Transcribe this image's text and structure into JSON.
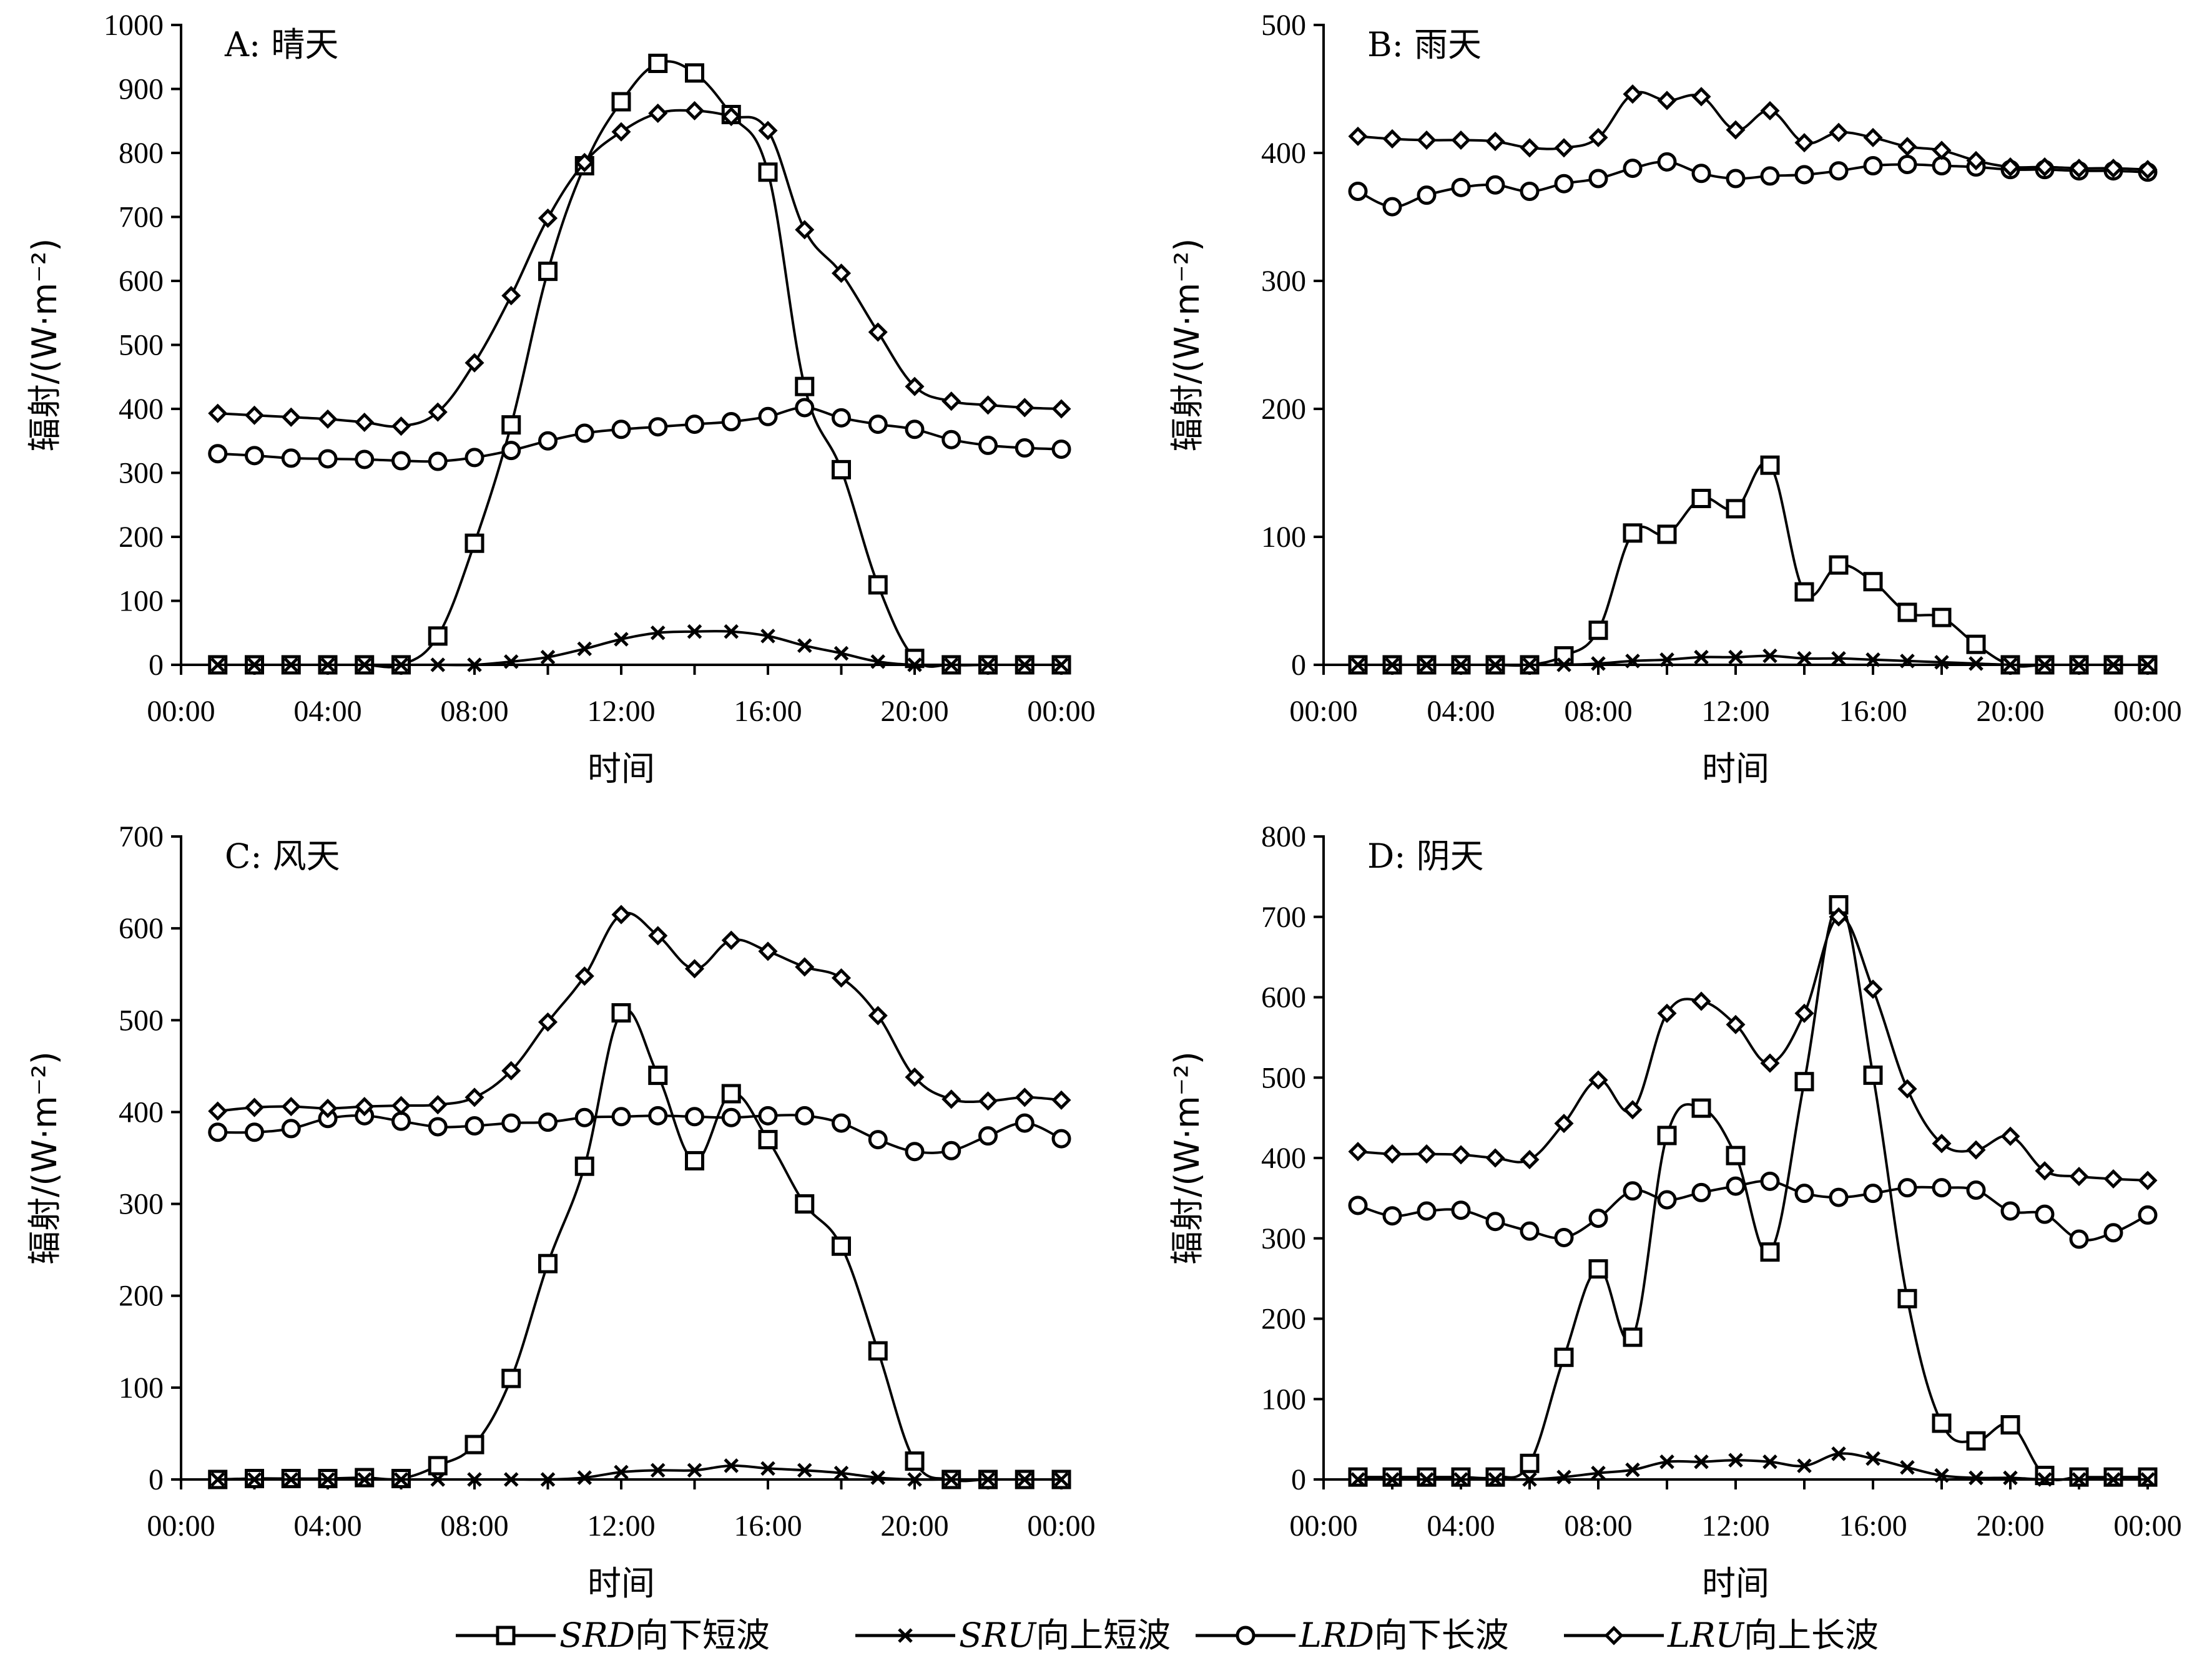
{
  "legend": [
    {
      "code": "SRD",
      "label": "向下短波",
      "marker": "square"
    },
    {
      "code": "SRU",
      "label": "向上短波",
      "marker": "x"
    },
    {
      "code": "LRD",
      "label": "向下长波",
      "marker": "circle"
    },
    {
      "code": "LRU",
      "label": "向上长波",
      "marker": "diamond"
    }
  ],
  "chart_data": [
    {
      "type": "line",
      "title": "A: 晴天",
      "xlabel": "时间",
      "ylabel": "辐射/(W·m⁻²)",
      "ylim": [
        0,
        1000
      ],
      "yticks": [
        0,
        100,
        200,
        300,
        400,
        500,
        600,
        700,
        800,
        900,
        1000
      ],
      "xlim": [
        0,
        24
      ],
      "xticks": [
        "00:00",
        "04:00",
        "08:00",
        "12:00",
        "16:00",
        "20:00",
        "00:00"
      ],
      "x": [
        1,
        2,
        3,
        4,
        5,
        6,
        7,
        8,
        9,
        10,
        11,
        12,
        13,
        14,
        15,
        16,
        17,
        18,
        19,
        20,
        21,
        22,
        23,
        24
      ],
      "series": [
        {
          "name": "SRD",
          "values": [
            0,
            0,
            0,
            0,
            0,
            0,
            45,
            190,
            375,
            615,
            780,
            880,
            940,
            925,
            860,
            770,
            435,
            305,
            125,
            10,
            0,
            0,
            0,
            0
          ]
        },
        {
          "name": "SRU",
          "values": [
            0,
            0,
            0,
            0,
            0,
            0,
            0,
            0,
            5,
            12,
            25,
            40,
            50,
            52,
            52,
            45,
            30,
            18,
            5,
            0,
            0,
            0,
            0,
            0
          ]
        },
        {
          "name": "LRD",
          "values": [
            330,
            327,
            323,
            322,
            321,
            319,
            318,
            324,
            335,
            350,
            362,
            368,
            372,
            376,
            380,
            388,
            402,
            386,
            376,
            368,
            352,
            343,
            339,
            337
          ]
        },
        {
          "name": "LRU",
          "values": [
            393,
            390,
            387,
            384,
            379,
            373,
            395,
            472,
            577,
            698,
            785,
            833,
            862,
            866,
            857,
            835,
            680,
            612,
            520,
            435,
            412,
            406,
            402,
            400
          ]
        }
      ]
    },
    {
      "type": "line",
      "title": "B: 雨天",
      "xlabel": "时间",
      "ylabel": "辐射/(W·m⁻²)",
      "ylim": [
        0,
        500
      ],
      "yticks": [
        0,
        100,
        200,
        300,
        400,
        500
      ],
      "xlim": [
        0,
        24
      ],
      "xticks": [
        "00:00",
        "04:00",
        "08:00",
        "12:00",
        "16:00",
        "20:00",
        "00:00"
      ],
      "x": [
        1,
        2,
        3,
        4,
        5,
        6,
        7,
        8,
        9,
        10,
        11,
        12,
        13,
        14,
        15,
        16,
        17,
        18,
        19,
        20,
        21,
        22,
        23,
        24
      ],
      "series": [
        {
          "name": "SRD",
          "values": [
            0,
            0,
            0,
            0,
            0,
            0,
            7,
            27,
            103,
            102,
            130,
            122,
            156,
            57,
            78,
            65,
            41,
            37,
            16,
            0,
            0,
            0,
            0,
            0
          ]
        },
        {
          "name": "SRU",
          "values": [
            0,
            0,
            0,
            0,
            0,
            0,
            0,
            1,
            3,
            4,
            6,
            6,
            7,
            5,
            5,
            4,
            3,
            2,
            1,
            0,
            0,
            0,
            0,
            0
          ]
        },
        {
          "name": "LRD",
          "values": [
            370,
            358,
            367,
            373,
            375,
            370,
            376,
            380,
            388,
            393,
            384,
            380,
            382,
            383,
            386,
            390,
            391,
            390,
            389,
            387,
            387,
            386,
            386,
            385
          ]
        },
        {
          "name": "LRU",
          "values": [
            413,
            411,
            410,
            410,
            409,
            404,
            404,
            412,
            446,
            441,
            444,
            418,
            433,
            408,
            416,
            412,
            405,
            402,
            394,
            389,
            389,
            388,
            388,
            387
          ]
        }
      ]
    },
    {
      "type": "line",
      "title": "C: 风天",
      "xlabel": "时间",
      "ylabel": "辐射/(W·m⁻²)",
      "ylim": [
        0,
        700
      ],
      "yticks": [
        0,
        100,
        200,
        300,
        400,
        500,
        600,
        700
      ],
      "xlim": [
        0,
        24
      ],
      "xticks": [
        "00:00",
        "04:00",
        "08:00",
        "12:00",
        "16:00",
        "20:00",
        "00:00"
      ],
      "x": [
        1,
        2,
        3,
        4,
        5,
        6,
        7,
        8,
        9,
        10,
        11,
        12,
        13,
        14,
        15,
        16,
        17,
        18,
        19,
        20,
        21,
        22,
        23,
        24
      ],
      "series": [
        {
          "name": "SRD",
          "values": [
            0,
            1,
            1,
            1,
            2,
            1,
            15,
            38,
            110,
            235,
            341,
            508,
            440,
            347,
            420,
            370,
            300,
            254,
            140,
            20,
            0,
            0,
            0,
            0
          ]
        },
        {
          "name": "SRU",
          "values": [
            0,
            0,
            0,
            0,
            0,
            0,
            0,
            0,
            0,
            0,
            2,
            8,
            10,
            10,
            15,
            12,
            10,
            7,
            2,
            0,
            0,
            0,
            0,
            0
          ]
        },
        {
          "name": "LRD",
          "values": [
            378,
            378,
            382,
            393,
            396,
            390,
            384,
            385,
            388,
            389,
            394,
            395,
            396,
            395,
            394,
            396,
            396,
            388,
            370,
            357,
            358,
            374,
            388,
            371
          ]
        },
        {
          "name": "LRU",
          "values": [
            401,
            405,
            406,
            404,
            406,
            407,
            408,
            416,
            445,
            498,
            548,
            615,
            592,
            556,
            587,
            575,
            558,
            546,
            505,
            438,
            414,
            412,
            416,
            413
          ]
        }
      ]
    },
    {
      "type": "line",
      "title": "D: 阴天",
      "xlabel": "时间",
      "ylabel": "辐射/(W·m⁻²)",
      "ylim": [
        0,
        800
      ],
      "yticks": [
        0,
        100,
        200,
        300,
        400,
        500,
        600,
        700,
        800
      ],
      "xlim": [
        0,
        24
      ],
      "xticks": [
        "00:00",
        "04:00",
        "08:00",
        "12:00",
        "16:00",
        "20:00",
        "00:00"
      ],
      "x": [
        1,
        2,
        3,
        4,
        5,
        6,
        7,
        8,
        9,
        10,
        11,
        12,
        13,
        14,
        15,
        16,
        17,
        18,
        19,
        20,
        21,
        22,
        23,
        24
      ],
      "series": [
        {
          "name": "SRD",
          "values": [
            3,
            3,
            3,
            3,
            3,
            20,
            152,
            262,
            177,
            428,
            462,
            403,
            283,
            495,
            715,
            503,
            225,
            70,
            48,
            68,
            5,
            3,
            3,
            3
          ]
        },
        {
          "name": "SRU",
          "values": [
            0,
            0,
            0,
            0,
            0,
            0,
            3,
            8,
            12,
            22,
            22,
            24,
            22,
            17,
            32,
            26,
            15,
            5,
            2,
            2,
            0,
            0,
            0,
            0
          ]
        },
        {
          "name": "LRD",
          "values": [
            341,
            328,
            334,
            335,
            321,
            309,
            301,
            325,
            359,
            348,
            357,
            365,
            371,
            356,
            351,
            356,
            363,
            363,
            360,
            334,
            330,
            299,
            307,
            329
          ]
        },
        {
          "name": "LRU",
          "values": [
            408,
            405,
            405,
            404,
            400,
            398,
            443,
            497,
            460,
            580,
            595,
            566,
            518,
            580,
            700,
            610,
            486,
            418,
            410,
            427,
            384,
            377,
            374,
            372
          ]
        }
      ]
    }
  ]
}
